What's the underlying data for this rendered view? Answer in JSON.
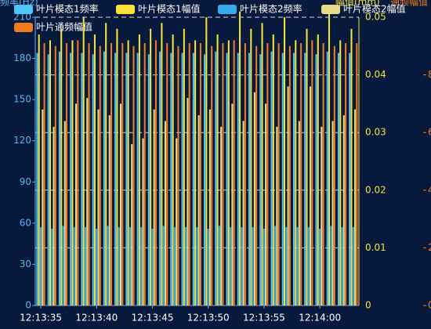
{
  "chart_data": {
    "type": "bar",
    "y_label": "频率(Hz)",
    "y2_label": "幅值(mm)",
    "y3_label": "通频幅值",
    "categories": [
      "12:13:35",
      null,
      null,
      null,
      null,
      "12:13:40",
      null,
      null,
      null,
      null,
      "12:13:45",
      null,
      null,
      null,
      null,
      "12:13:50",
      null,
      null,
      null,
      null,
      "12:13:55",
      null,
      null,
      null,
      null,
      "12:14:00",
      null,
      null,
      null
    ],
    "series": [
      {
        "name": "叶片模态1频率",
        "color": "#4fc4f7",
        "axis": "y",
        "values": [
          184,
          183,
          185,
          184,
          184,
          183,
          185,
          184,
          184,
          184,
          183,
          185,
          184,
          184,
          184,
          183,
          185,
          184,
          184,
          184,
          183,
          185,
          184,
          184,
          184,
          183,
          185,
          184,
          184
        ]
      },
      {
        "name": "叶片模态1幅值",
        "color": "#f5e23b",
        "axis": "y2",
        "values": [
          0.047,
          0.046,
          0.048,
          0.046,
          0.05,
          0.047,
          0.049,
          0.048,
          0.046,
          0.047,
          0.048,
          0.049,
          0.047,
          0.048,
          0.046,
          0.05,
          0.047,
          0.046,
          0.051,
          0.048,
          0.049,
          0.047,
          0.05,
          0.046,
          0.048,
          0.047,
          0.051,
          0.046,
          0.048
        ]
      },
      {
        "name": "叶片模态2频率",
        "color": "#36a9e8",
        "axis": "y",
        "values": [
          57,
          56,
          58,
          57,
          57,
          56,
          58,
          57,
          57,
          57,
          56,
          58,
          57,
          57,
          57,
          56,
          58,
          57,
          57,
          57,
          56,
          58,
          57,
          57,
          57,
          56,
          58,
          57,
          57
        ]
      },
      {
        "name": "叶片模态2幅值",
        "color": "#e8dc8a",
        "axis": "y2",
        "values": [
          0.034,
          0.031,
          0.032,
          0.035,
          0.036,
          0.034,
          0.033,
          0.035,
          0.028,
          0.029,
          0.034,
          0.032,
          0.029,
          0.036,
          0.033,
          0.034,
          0.031,
          0.035,
          0.032,
          0.037,
          0.035,
          0.031,
          0.038,
          0.032,
          0.038,
          0.031,
          0.032,
          0.033,
          0.034
        ]
      },
      {
        "name": "叶片通频幅值",
        "color": "#f07b1f",
        "axis": "y3",
        "values": [
          9.1,
          9.0,
          9.1,
          9.2,
          9.1,
          9.0,
          9.1,
          9.1,
          9.0,
          9.1,
          9.2,
          9.1,
          9.0,
          9.1,
          9.1,
          9.0,
          9.1,
          9.2,
          9.1,
          9.0,
          9.1,
          9.1,
          9.0,
          9.1,
          9.2,
          9.1,
          9.0,
          9.1,
          9.1
        ]
      }
    ],
    "ylim": [
      0,
      210
    ],
    "yticks": [
      0,
      30,
      60,
      90,
      120,
      150,
      180,
      210
    ],
    "y2lim": [
      0,
      0.05
    ],
    "y2ticks": [
      0,
      0.01,
      0.02,
      0.03,
      0.04,
      0.05
    ],
    "y3lim": [
      0,
      10
    ],
    "y3ticks": [
      0,
      2,
      4,
      6,
      8
    ],
    "grid": true
  }
}
